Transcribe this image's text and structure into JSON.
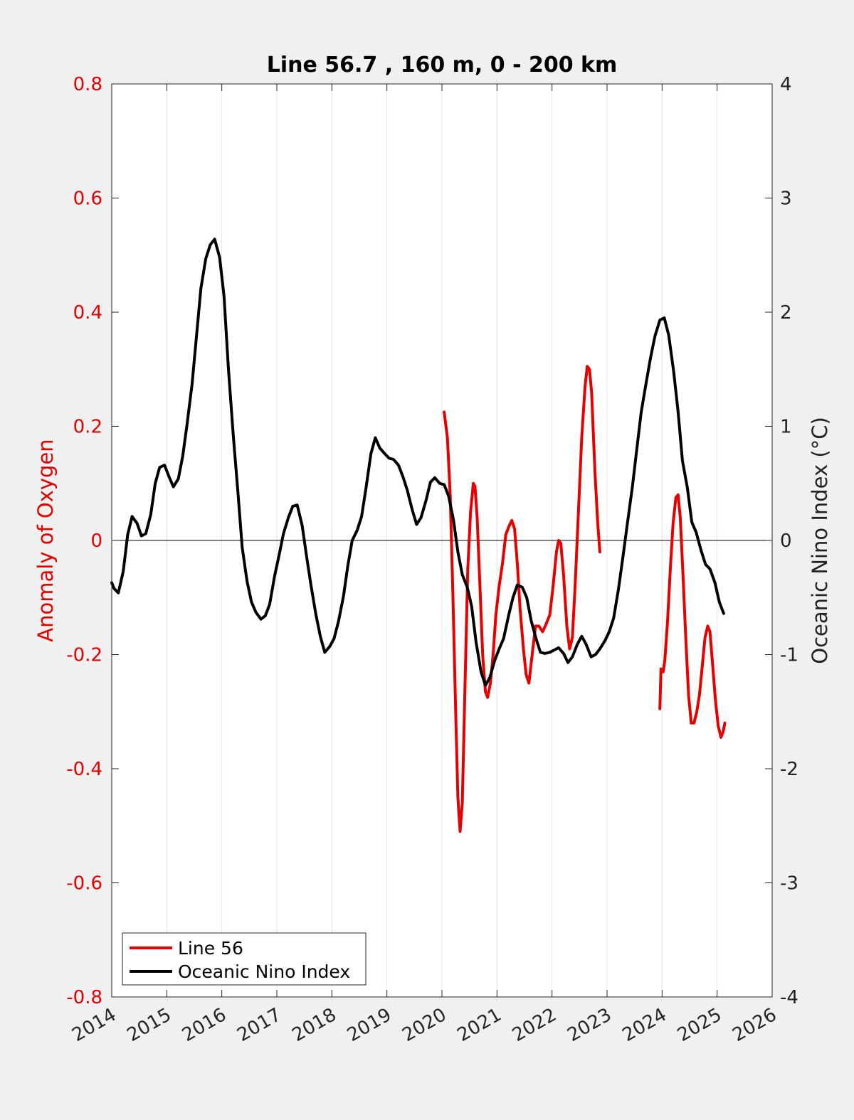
{
  "chart_data": {
    "type": "line",
    "title": "Line 56.7 , 160 m, 0 - 200 km",
    "xlabel": "",
    "ylabel_left": "Anomaly of Oxygen",
    "ylabel_right": "Oceanic Nino Index (°C)",
    "xlim": [
      2014,
      2026
    ],
    "ylim_left": [
      -0.8,
      0.8
    ],
    "ylim_right": [
      -4,
      4
    ],
    "x_ticks": [
      "2014",
      "2015",
      "2016",
      "2017",
      "2018",
      "2019",
      "2020",
      "2021",
      "2022",
      "2023",
      "2024",
      "2025",
      "2026"
    ],
    "y_ticks_left": [
      "-0.8",
      "-0.6",
      "-0.4",
      "-0.2",
      "0",
      "0.2",
      "0.4",
      "0.6",
      "0.8"
    ],
    "y_ticks_right": [
      "-4",
      "-3",
      "-2",
      "-1",
      "0",
      "1",
      "2",
      "3",
      "4"
    ],
    "grid": "vertical",
    "zero_line": true,
    "legend_position": "bottom-left",
    "colors": {
      "line56": "#e60000",
      "oni": "#000000",
      "left_axis": "#e60000",
      "right_axis": "#222222"
    },
    "series": [
      {
        "name": "Line 56",
        "axis": "left",
        "segments": [
          [
            [
              2020.04,
              0.225
            ],
            [
              2020.1,
              0.18
            ],
            [
              2020.15,
              0.08
            ],
            [
              2020.2,
              -0.1
            ],
            [
              2020.25,
              -0.3
            ],
            [
              2020.29,
              -0.45
            ],
            [
              2020.33,
              -0.51
            ],
            [
              2020.37,
              -0.46
            ],
            [
              2020.42,
              -0.25
            ],
            [
              2020.47,
              -0.05
            ],
            [
              2020.52,
              0.05
            ],
            [
              2020.57,
              0.1
            ],
            [
              2020.6,
              0.095
            ],
            [
              2020.64,
              0.04
            ],
            [
              2020.69,
              -0.08
            ],
            [
              2020.74,
              -0.2
            ],
            [
              2020.79,
              -0.265
            ],
            [
              2020.83,
              -0.275
            ],
            [
              2020.88,
              -0.25
            ],
            [
              2020.93,
              -0.2
            ],
            [
              2020.98,
              -0.13
            ],
            [
              2021.04,
              -0.08
            ],
            [
              2021.1,
              -0.04
            ],
            [
              2021.16,
              0.01
            ],
            [
              2021.22,
              0.025
            ],
            [
              2021.27,
              0.035
            ],
            [
              2021.32,
              0.02
            ],
            [
              2021.37,
              -0.04
            ],
            [
              2021.42,
              -0.12
            ],
            [
              2021.48,
              -0.19
            ],
            [
              2021.53,
              -0.235
            ],
            [
              2021.58,
              -0.25
            ],
            [
              2021.64,
              -0.2
            ],
            [
              2021.7,
              -0.15
            ],
            [
              2021.76,
              -0.15
            ],
            [
              2021.83,
              -0.16
            ],
            [
              2021.9,
              -0.145
            ],
            [
              2021.96,
              -0.13
            ],
            [
              2022.02,
              -0.08
            ],
            [
              2022.08,
              -0.02
            ],
            [
              2022.12,
              0.0
            ],
            [
              2022.16,
              -0.005
            ],
            [
              2022.21,
              -0.06
            ],
            [
              2022.27,
              -0.15
            ],
            [
              2022.32,
              -0.19
            ],
            [
              2022.37,
              -0.17
            ],
            [
              2022.42,
              -0.08
            ],
            [
              2022.48,
              0.05
            ],
            [
              2022.54,
              0.18
            ],
            [
              2022.6,
              0.27
            ],
            [
              2022.64,
              0.305
            ],
            [
              2022.68,
              0.3
            ],
            [
              2022.72,
              0.26
            ],
            [
              2022.78,
              0.12
            ],
            [
              2022.83,
              0.03
            ],
            [
              2022.87,
              -0.02
            ]
          ],
          [
            [
              2023.96,
              -0.295
            ],
            [
              2023.98,
              -0.225
            ],
            [
              2024.02,
              -0.23
            ],
            [
              2024.05,
              -0.21
            ],
            [
              2024.1,
              -0.14
            ],
            [
              2024.15,
              -0.05
            ],
            [
              2024.2,
              0.03
            ],
            [
              2024.25,
              0.075
            ],
            [
              2024.29,
              0.08
            ],
            [
              2024.33,
              0.04
            ],
            [
              2024.38,
              -0.06
            ],
            [
              2024.43,
              -0.17
            ],
            [
              2024.48,
              -0.27
            ],
            [
              2024.53,
              -0.32
            ],
            [
              2024.58,
              -0.32
            ],
            [
              2024.63,
              -0.3
            ],
            [
              2024.68,
              -0.27
            ],
            [
              2024.73,
              -0.22
            ],
            [
              2024.78,
              -0.17
            ],
            [
              2024.83,
              -0.15
            ],
            [
              2024.87,
              -0.16
            ],
            [
              2024.92,
              -0.22
            ],
            [
              2024.97,
              -0.28
            ],
            [
              2025.02,
              -0.325
            ],
            [
              2025.07,
              -0.345
            ],
            [
              2025.11,
              -0.335
            ],
            [
              2025.14,
              -0.32
            ]
          ]
        ]
      },
      {
        "name": "Oceanic Nino Index",
        "axis": "right",
        "segments": [
          [
            [
              2014.0,
              -0.37
            ],
            [
              2014.04,
              -0.42
            ],
            [
              2014.12,
              -0.46
            ],
            [
              2014.21,
              -0.27
            ],
            [
              2014.29,
              0.05
            ],
            [
              2014.37,
              0.21
            ],
            [
              2014.46,
              0.15
            ],
            [
              2014.54,
              0.04
            ],
            [
              2014.62,
              0.06
            ],
            [
              2014.71,
              0.23
            ],
            [
              2014.79,
              0.5
            ],
            [
              2014.87,
              0.64
            ],
            [
              2014.96,
              0.66
            ],
            [
              2015.04,
              0.56
            ],
            [
              2015.12,
              0.47
            ],
            [
              2015.21,
              0.54
            ],
            [
              2015.29,
              0.74
            ],
            [
              2015.37,
              1.02
            ],
            [
              2015.46,
              1.37
            ],
            [
              2015.54,
              1.79
            ],
            [
              2015.62,
              2.21
            ],
            [
              2015.71,
              2.47
            ],
            [
              2015.79,
              2.59
            ],
            [
              2015.87,
              2.64
            ],
            [
              2015.96,
              2.48
            ],
            [
              2016.04,
              2.14
            ],
            [
              2016.12,
              1.51
            ],
            [
              2016.21,
              0.91
            ],
            [
              2016.29,
              0.44
            ],
            [
              2016.37,
              -0.06
            ],
            [
              2016.46,
              -0.36
            ],
            [
              2016.54,
              -0.54
            ],
            [
              2016.62,
              -0.63
            ],
            [
              2016.71,
              -0.69
            ],
            [
              2016.79,
              -0.66
            ],
            [
              2016.87,
              -0.56
            ],
            [
              2016.96,
              -0.31
            ],
            [
              2017.04,
              -0.13
            ],
            [
              2017.12,
              0.06
            ],
            [
              2017.21,
              0.2
            ],
            [
              2017.29,
              0.3
            ],
            [
              2017.37,
              0.31
            ],
            [
              2017.46,
              0.13
            ],
            [
              2017.54,
              -0.14
            ],
            [
              2017.62,
              -0.39
            ],
            [
              2017.71,
              -0.65
            ],
            [
              2017.79,
              -0.84
            ],
            [
              2017.87,
              -0.98
            ],
            [
              2017.96,
              -0.93
            ],
            [
              2018.04,
              -0.86
            ],
            [
              2018.12,
              -0.71
            ],
            [
              2018.21,
              -0.49
            ],
            [
              2018.29,
              -0.22
            ],
            [
              2018.37,
              0.0
            ],
            [
              2018.46,
              0.09
            ],
            [
              2018.54,
              0.21
            ],
            [
              2018.62,
              0.46
            ],
            [
              2018.71,
              0.76
            ],
            [
              2018.79,
              0.9
            ],
            [
              2018.87,
              0.81
            ],
            [
              2018.96,
              0.76
            ],
            [
              2019.04,
              0.72
            ],
            [
              2019.12,
              0.71
            ],
            [
              2019.21,
              0.66
            ],
            [
              2019.29,
              0.56
            ],
            [
              2019.37,
              0.44
            ],
            [
              2019.46,
              0.27
            ],
            [
              2019.54,
              0.14
            ],
            [
              2019.62,
              0.2
            ],
            [
              2019.71,
              0.35
            ],
            [
              2019.79,
              0.51
            ],
            [
              2019.87,
              0.55
            ],
            [
              2019.96,
              0.5
            ],
            [
              2020.04,
              0.49
            ],
            [
              2020.12,
              0.39
            ],
            [
              2020.21,
              0.18
            ],
            [
              2020.29,
              -0.1
            ],
            [
              2020.37,
              -0.3
            ],
            [
              2020.46,
              -0.41
            ],
            [
              2020.54,
              -0.58
            ],
            [
              2020.62,
              -0.89
            ],
            [
              2020.71,
              -1.15
            ],
            [
              2020.79,
              -1.27
            ],
            [
              2020.87,
              -1.2
            ],
            [
              2020.96,
              -1.05
            ],
            [
              2021.04,
              -0.95
            ],
            [
              2021.12,
              -0.86
            ],
            [
              2021.21,
              -0.66
            ],
            [
              2021.29,
              -0.5
            ],
            [
              2021.37,
              -0.39
            ],
            [
              2021.46,
              -0.41
            ],
            [
              2021.54,
              -0.5
            ],
            [
              2021.62,
              -0.7
            ],
            [
              2021.71,
              -0.86
            ],
            [
              2021.79,
              -0.98
            ],
            [
              2021.87,
              -0.99
            ],
            [
              2021.96,
              -0.98
            ],
            [
              2022.04,
              -0.96
            ],
            [
              2022.12,
              -0.94
            ],
            [
              2022.21,
              -0.99
            ],
            [
              2022.29,
              -1.07
            ],
            [
              2022.37,
              -1.02
            ],
            [
              2022.46,
              -0.91
            ],
            [
              2022.54,
              -0.84
            ],
            [
              2022.62,
              -0.91
            ],
            [
              2022.71,
              -1.02
            ],
            [
              2022.79,
              -1.0
            ],
            [
              2022.87,
              -0.95
            ],
            [
              2022.96,
              -0.88
            ],
            [
              2023.04,
              -0.8
            ],
            [
              2023.12,
              -0.68
            ],
            [
              2023.21,
              -0.42
            ],
            [
              2023.29,
              -0.14
            ],
            [
              2023.37,
              0.15
            ],
            [
              2023.46,
              0.47
            ],
            [
              2023.54,
              0.8
            ],
            [
              2023.62,
              1.12
            ],
            [
              2023.71,
              1.38
            ],
            [
              2023.79,
              1.6
            ],
            [
              2023.87,
              1.79
            ],
            [
              2023.96,
              1.93
            ],
            [
              2024.04,
              1.95
            ],
            [
              2024.12,
              1.8
            ],
            [
              2024.21,
              1.48
            ],
            [
              2024.29,
              1.13
            ],
            [
              2024.37,
              0.7
            ],
            [
              2024.46,
              0.46
            ],
            [
              2024.54,
              0.16
            ],
            [
              2024.62,
              0.07
            ],
            [
              2024.71,
              -0.09
            ],
            [
              2024.79,
              -0.21
            ],
            [
              2024.87,
              -0.25
            ],
            [
              2024.96,
              -0.37
            ],
            [
              2025.04,
              -0.54
            ],
            [
              2025.12,
              -0.64
            ]
          ]
        ]
      }
    ]
  }
}
